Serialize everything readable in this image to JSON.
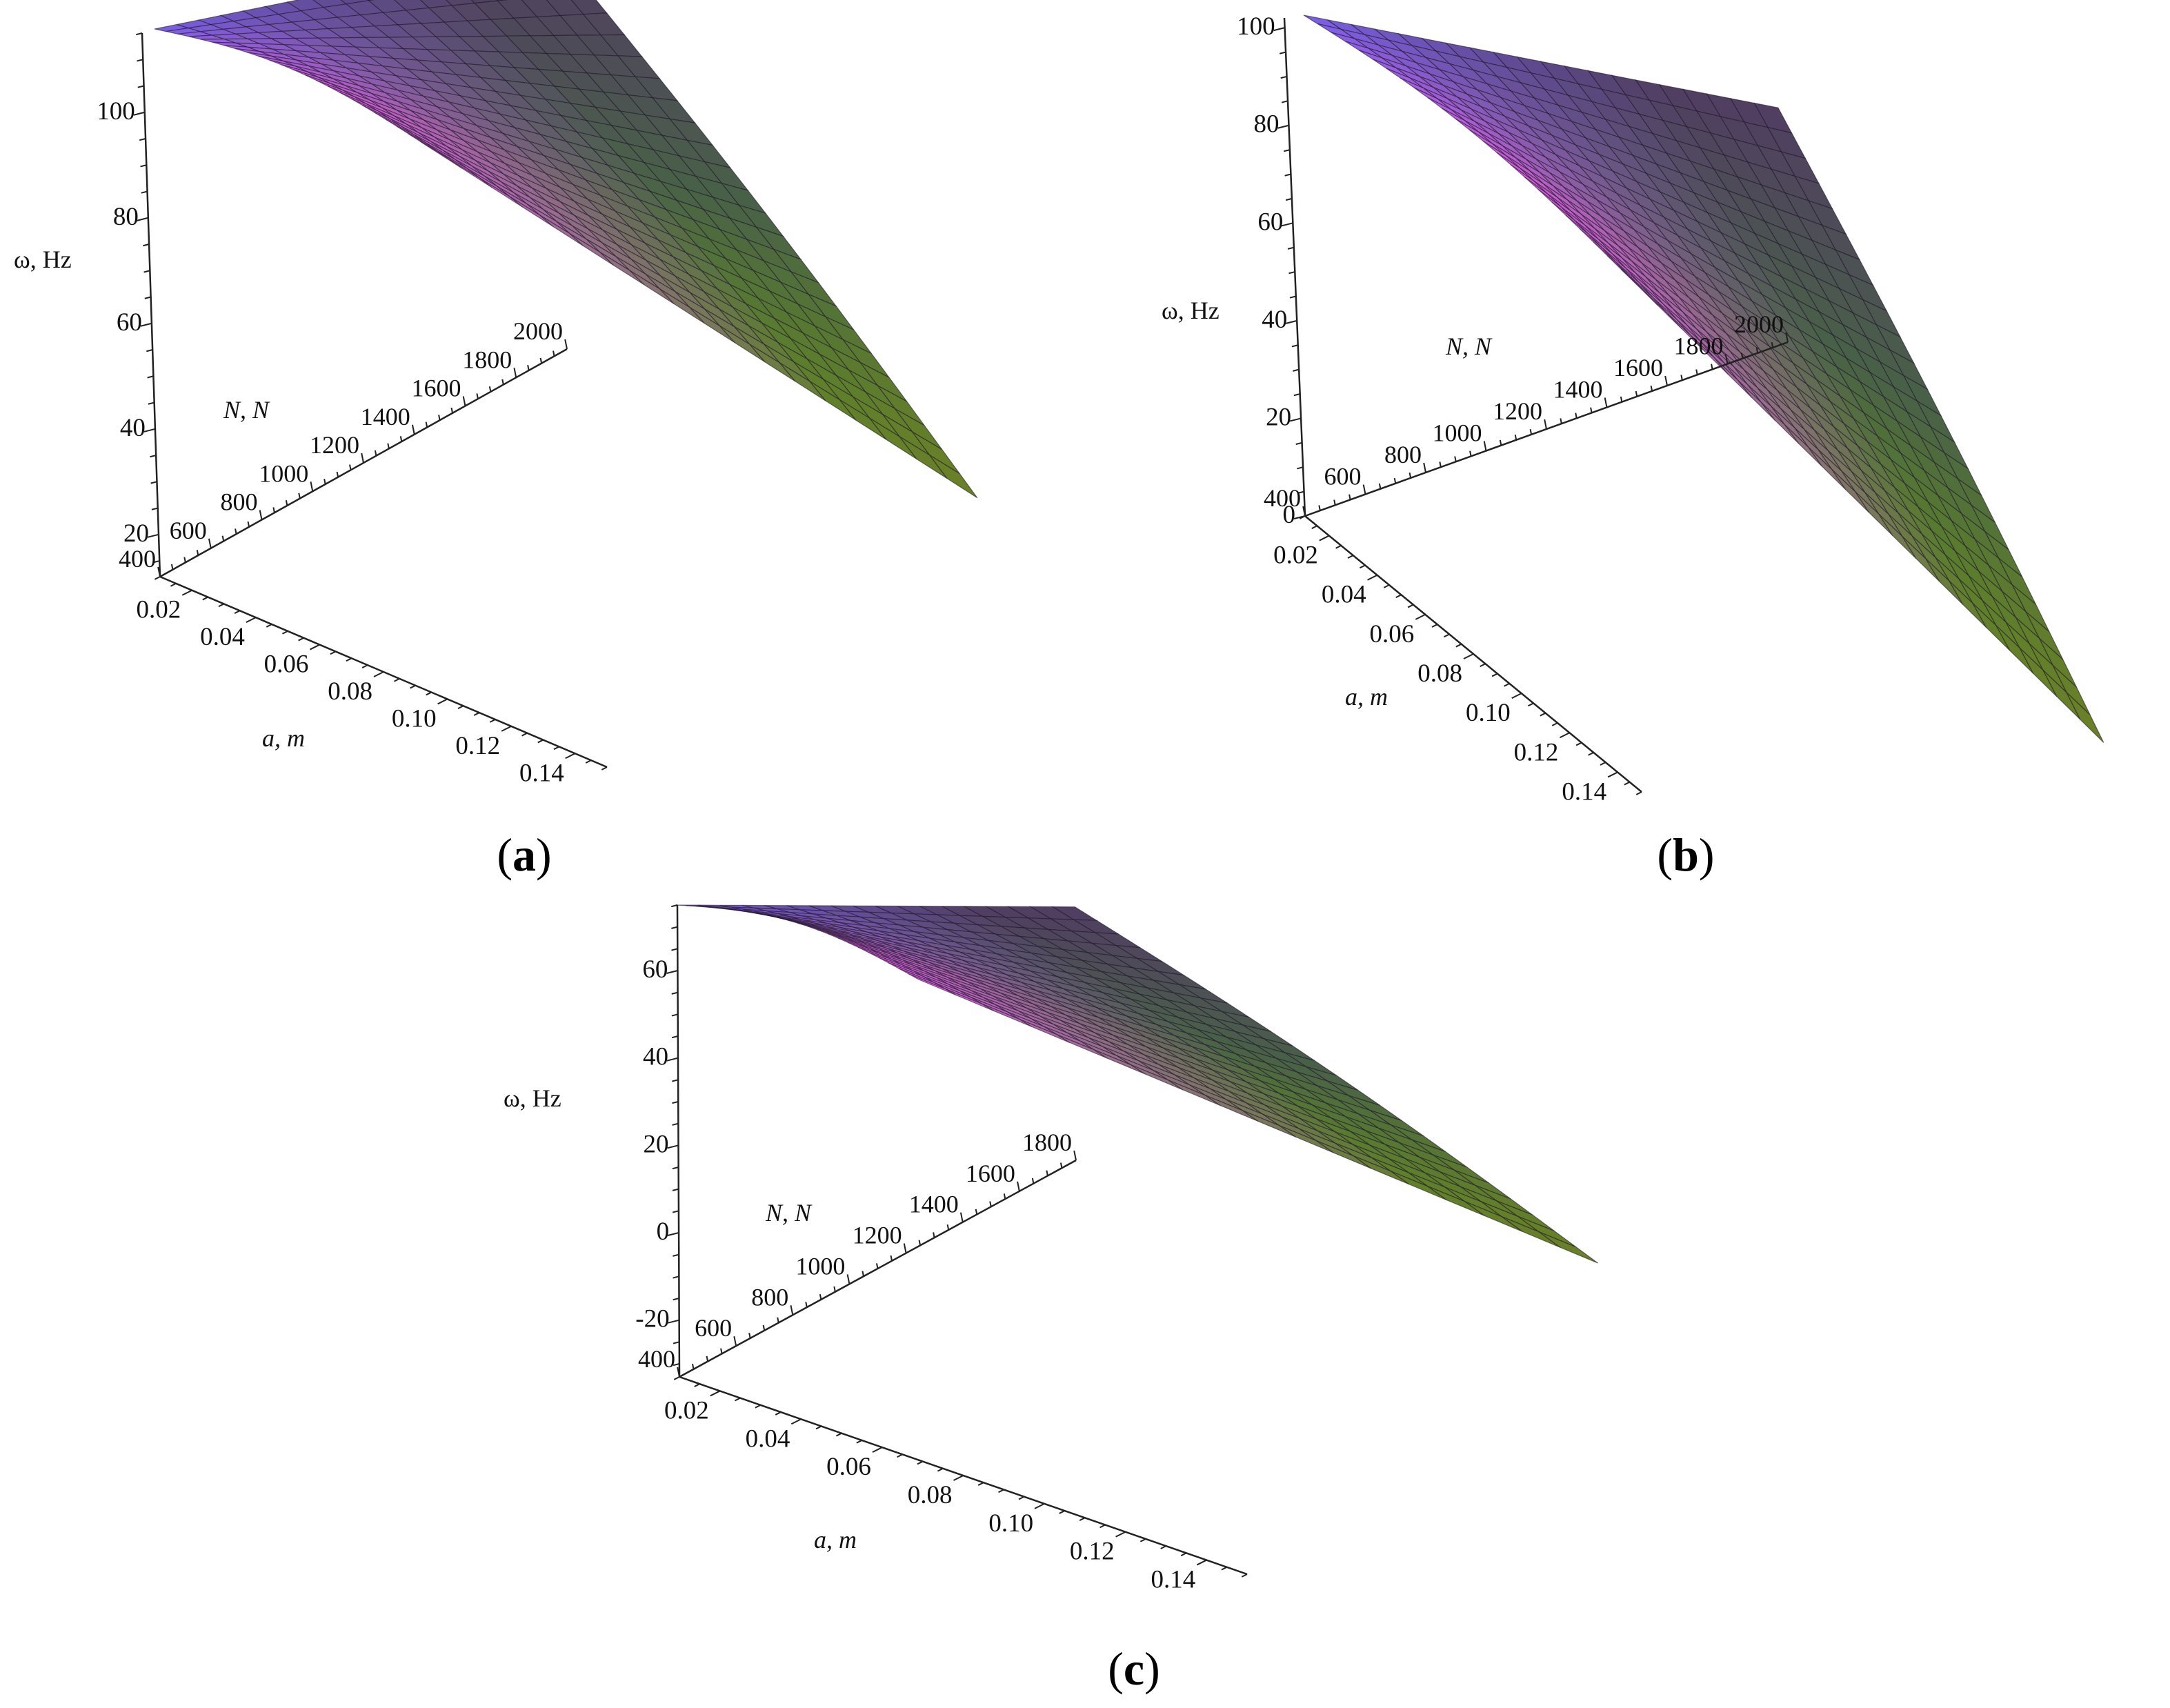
{
  "chart_data": [
    {
      "type": "surface",
      "panel_label": "a",
      "z_axis_label": "ω, Hz",
      "n_axis_label": "N, N",
      "a_axis_label": "a, m",
      "z_ticks": [
        "20",
        "40",
        "60",
        "80",
        "100"
      ],
      "n_ticks": [
        "400",
        "600",
        "800",
        "1000",
        "1200",
        "1400",
        "1600",
        "1800",
        "2000"
      ],
      "a_ticks": [
        "0.02",
        "0.04",
        "0.06",
        "0.08",
        "0.10",
        "0.12",
        "0.14"
      ],
      "zlim": [
        12,
        115
      ],
      "nlim": [
        400,
        2000
      ],
      "alim": [
        0.01,
        0.15
      ],
      "surface_corners": {
        "a_min_N_max": 88,
        "a_max_N_max": 17
      }
    },
    {
      "type": "surface",
      "panel_label": "b",
      "z_axis_label": "ω, Hz",
      "n_axis_label": "N, N",
      "a_axis_label": "a, m",
      "z_ticks": [
        "0",
        "20",
        "40",
        "60",
        "80",
        "100"
      ],
      "n_ticks": [
        "400",
        "600",
        "800",
        "1000",
        "1200",
        "1400",
        "1600",
        "1800",
        "2000"
      ],
      "a_ticks": [
        "0.02",
        "0.04",
        "0.06",
        "0.08",
        "0.10",
        "0.12",
        "0.14"
      ],
      "zlim": [
        0,
        102
      ],
      "nlim": [
        400,
        2000
      ],
      "alim": [
        0.01,
        0.15
      ],
      "surface_corners": {
        "a_min_N_max": 48,
        "a_max_N_max": -30
      }
    },
    {
      "type": "surface",
      "panel_label": "c",
      "z_axis_label": "ω, Hz",
      "n_axis_label": "N, N",
      "a_axis_label": "a, m",
      "z_ticks": [
        "-20",
        "0",
        "20",
        "40",
        "60"
      ],
      "n_ticks": [
        "400",
        "600",
        "800",
        "1000",
        "1200",
        "1400",
        "1600",
        "1800"
      ],
      "a_ticks": [
        "0.02",
        "0.04",
        "0.06",
        "0.08",
        "0.10",
        "0.12",
        "0.14"
      ],
      "zlim": [
        -33,
        75
      ],
      "nlim": [
        400,
        1800
      ],
      "alim": [
        0.01,
        0.15
      ],
      "surface_corners": {
        "a_min_N_max": 25,
        "a_max_N_max": -15
      }
    }
  ]
}
